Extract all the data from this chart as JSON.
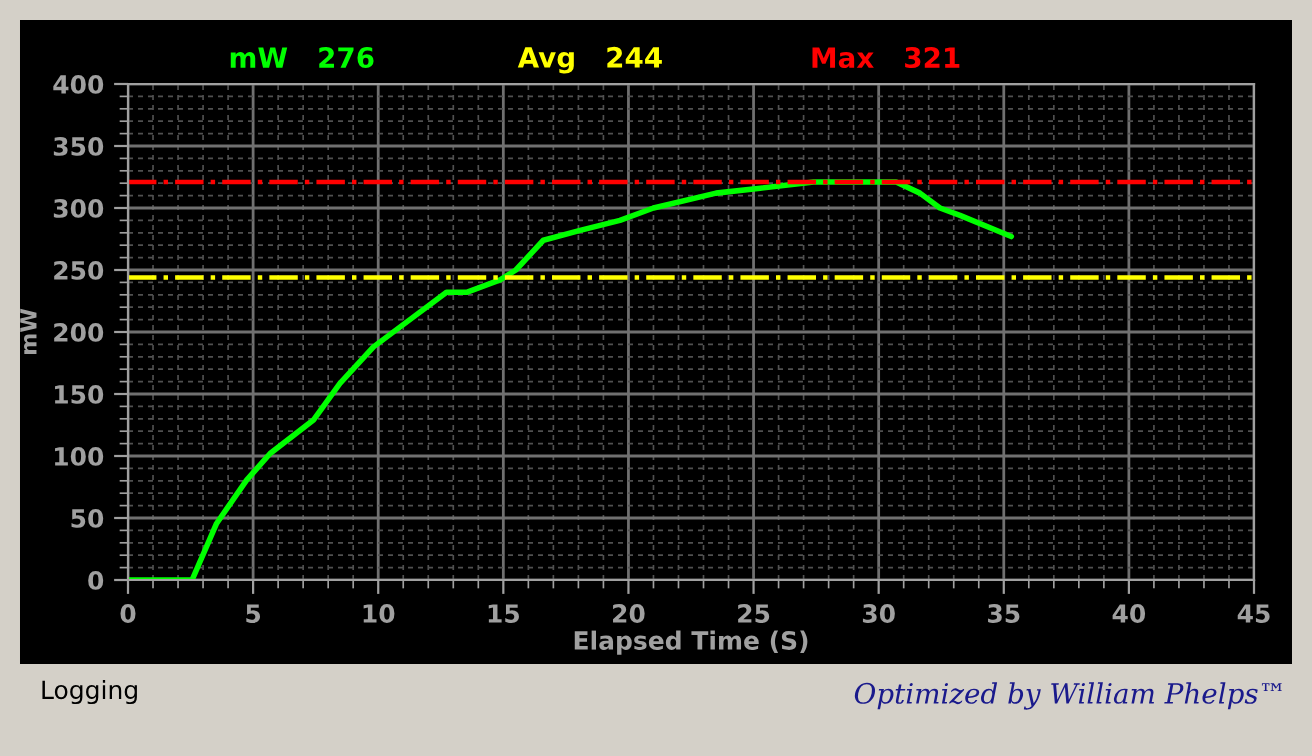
{
  "chart_data": {
    "type": "line",
    "xlabel": "Elapsed Time (S)",
    "ylabel": "mW",
    "x": [
      0,
      2.56,
      3.54,
      4.74,
      5.68,
      7.41,
      8.47,
      9.81,
      11.4,
      12.73,
      13.53,
      14.87,
      15.5,
      16.6,
      18.07,
      19.66,
      21.0,
      23.5,
      25.26,
      27.4,
      30.7,
      31.65,
      32.45,
      33.25,
      35.3
    ],
    "series": [
      {
        "color": "#00ff00",
        "values": [
          0,
          0,
          45.6,
          80.6,
          102,
          129,
          158.5,
          188,
          212,
          232,
          232,
          242,
          250,
          274,
          282,
          290,
          300,
          312,
          316,
          321,
          321,
          312,
          300,
          294,
          277
        ]
      }
    ],
    "xlim": [
      0,
      45
    ],
    "xticks": [
      0,
      5,
      10,
      15,
      20,
      25,
      30,
      35,
      40,
      45
    ],
    "ylim": [
      0,
      400
    ],
    "yticks": [
      0,
      50,
      100,
      150,
      200,
      250,
      300,
      350,
      400
    ],
    "ref_lines": [
      {
        "axis": "y",
        "value": 244,
        "color": "#ffff00",
        "line_style": "dashdot"
      },
      {
        "axis": "y",
        "value": 321,
        "color": "#ff0000",
        "line_style": "dashdot"
      }
    ],
    "annotations": [
      "mW   276",
      "Avg   244",
      "Max   321",
      "Logging",
      "Optimized by William Phelps™"
    ],
    "grid": true,
    "legend": false,
    "marker": "none",
    "line_style": "solid"
  }
}
